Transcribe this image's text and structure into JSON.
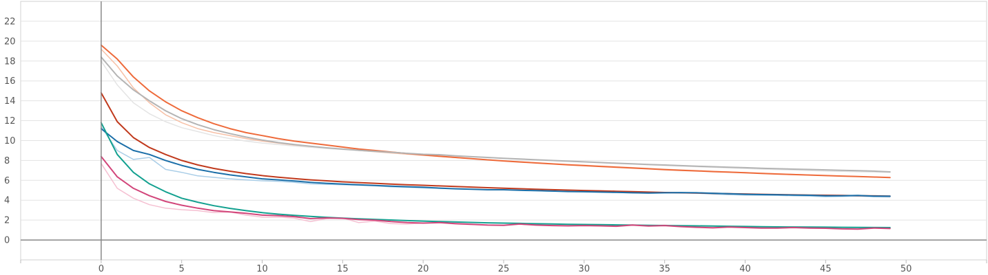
{
  "chart_data": {
    "type": "line",
    "title": "",
    "xlabel": "",
    "ylabel": "",
    "xlim": [
      -5,
      55
    ],
    "ylim": [
      -2,
      24
    ],
    "x_ticks": [
      0,
      5,
      10,
      15,
      20,
      25,
      30,
      35,
      40,
      45,
      50
    ],
    "y_ticks": [
      0,
      2,
      4,
      6,
      8,
      10,
      12,
      14,
      16,
      18,
      20,
      22
    ],
    "grid": "horizontal",
    "legend": "none",
    "x": [
      0,
      1,
      2,
      3,
      4,
      5,
      6,
      7,
      8,
      9,
      10,
      11,
      12,
      13,
      14,
      15,
      16,
      17,
      18,
      19,
      20,
      21,
      22,
      23,
      24,
      25,
      26,
      27,
      28,
      29,
      30,
      31,
      32,
      33,
      34,
      35,
      36,
      37,
      38,
      39,
      40,
      41,
      42,
      43,
      44,
      45,
      46,
      47,
      48,
      49
    ],
    "series": [
      {
        "color": "#ee6a3a",
        "width": 2,
        "values": [
          19.6,
          18.2,
          16.4,
          15.0,
          13.9,
          13.0,
          12.3,
          11.7,
          11.2,
          10.8,
          10.5,
          10.2,
          9.95,
          9.75,
          9.55,
          9.35,
          9.15,
          9.0,
          8.85,
          8.7,
          8.55,
          8.42,
          8.3,
          8.18,
          8.06,
          7.95,
          7.85,
          7.75,
          7.65,
          7.56,
          7.48,
          7.4,
          7.32,
          7.24,
          7.16,
          7.08,
          7.01,
          6.95,
          6.88,
          6.82,
          6.76,
          6.7,
          6.64,
          6.58,
          6.53,
          6.48,
          6.43,
          6.38,
          6.33,
          6.28
        ]
      },
      {
        "color": "#f7c0a6",
        "width": 1.5,
        "values": [
          19.2,
          17.5,
          15.3,
          13.8,
          12.6,
          11.8,
          11.2,
          10.8,
          10.5,
          10.2,
          9.95,
          9.75,
          9.55,
          9.4,
          9.25,
          9.15,
          9.0,
          8.88,
          8.75,
          8.63,
          8.52,
          8.4,
          8.28,
          8.18,
          8.08,
          7.98,
          7.88,
          7.78,
          7.68,
          7.6,
          7.52,
          7.44,
          7.36,
          7.28,
          7.2,
          7.12,
          7.05,
          6.98,
          6.91,
          6.85,
          6.78,
          6.72,
          6.66,
          6.6,
          6.54,
          6.48,
          6.43,
          6.38,
          6.33,
          6.28
        ]
      },
      {
        "color": "#b4b4b4",
        "width": 2,
        "values": [
          18.4,
          16.5,
          15.1,
          14.0,
          13.0,
          12.2,
          11.6,
          11.1,
          10.7,
          10.35,
          10.05,
          9.8,
          9.6,
          9.42,
          9.27,
          9.14,
          9.02,
          8.92,
          8.82,
          8.72,
          8.62,
          8.58,
          8.47,
          8.38,
          8.3,
          8.22,
          8.15,
          8.07,
          8.0,
          7.93,
          7.86,
          7.79,
          7.72,
          7.66,
          7.6,
          7.54,
          7.48,
          7.42,
          7.37,
          7.32,
          7.27,
          7.22,
          7.17,
          7.13,
          7.09,
          7.05,
          7.01,
          6.97,
          6.93,
          6.85
        ]
      },
      {
        "color": "#e4e4e4",
        "width": 1.5,
        "values": [
          18.0,
          15.6,
          13.8,
          12.7,
          11.9,
          11.3,
          10.9,
          10.5,
          10.2,
          9.95,
          9.75,
          9.6,
          9.45,
          9.32,
          9.2,
          9.1,
          9.0,
          8.9,
          8.82,
          8.72,
          8.62,
          8.52,
          8.44,
          8.36,
          8.28,
          8.2,
          8.12,
          8.05,
          7.98,
          7.91,
          7.84,
          7.77,
          7.7,
          7.63,
          7.56,
          7.49,
          7.43,
          7.37,
          7.31,
          7.25,
          7.19,
          7.13,
          7.08,
          7.03,
          6.98,
          6.93,
          6.9,
          6.86,
          6.83,
          6.8
        ]
      },
      {
        "color": "#c0391c",
        "width": 2,
        "values": [
          14.8,
          11.9,
          10.3,
          9.3,
          8.6,
          8.0,
          7.55,
          7.2,
          6.92,
          6.68,
          6.48,
          6.32,
          6.18,
          6.05,
          5.95,
          5.85,
          5.77,
          5.7,
          5.62,
          5.56,
          5.5,
          5.44,
          5.38,
          5.32,
          5.26,
          5.21,
          5.16,
          5.11,
          5.06,
          5.02,
          4.98,
          4.94,
          4.9,
          4.86,
          4.82,
          4.78,
          4.75,
          4.72,
          4.69,
          4.66,
          4.63,
          4.6,
          4.57,
          4.54,
          4.52,
          4.5,
          4.48,
          4.46,
          4.44,
          4.42
        ]
      },
      {
        "color": "#1a6ea8",
        "width": 2,
        "values": [
          11.2,
          9.9,
          9.0,
          8.6,
          8.0,
          7.5,
          7.1,
          6.8,
          6.55,
          6.35,
          6.15,
          6.05,
          5.93,
          5.8,
          5.7,
          5.62,
          5.56,
          5.48,
          5.42,
          5.36,
          5.3,
          5.22,
          5.15,
          5.1,
          5.05,
          5.05,
          5.0,
          4.96,
          4.92,
          4.87,
          4.85,
          4.82,
          4.79,
          4.75,
          4.72,
          4.75,
          4.77,
          4.75,
          4.7,
          4.65,
          4.6,
          4.57,
          4.55,
          4.52,
          4.5,
          4.45,
          4.45,
          4.48,
          4.42,
          4.4
        ]
      },
      {
        "color": "#a9cde7",
        "width": 1.5,
        "values": [
          11.4,
          9.0,
          8.1,
          8.3,
          7.1,
          6.8,
          6.45,
          6.3,
          6.15,
          6.05,
          5.95,
          5.9,
          5.8,
          5.65,
          5.6,
          5.55,
          5.5,
          5.45,
          5.35,
          5.3,
          5.25,
          5.2,
          5.15,
          5.1,
          5.05,
          5.05,
          5.0,
          4.95,
          4.9,
          4.88,
          4.85,
          4.82,
          4.78,
          4.74,
          4.7,
          4.72,
          4.72,
          4.7,
          4.62,
          4.55,
          4.52,
          4.5,
          4.48,
          4.45,
          4.42,
          4.35,
          4.38,
          4.42,
          4.35,
          4.33
        ]
      },
      {
        "color": "#12a08f",
        "width": 2,
        "values": [
          11.8,
          8.6,
          6.8,
          5.65,
          4.85,
          4.2,
          3.8,
          3.45,
          3.18,
          2.95,
          2.75,
          2.6,
          2.48,
          2.38,
          2.28,
          2.2,
          2.13,
          2.07,
          2.01,
          1.95,
          1.9,
          1.85,
          1.81,
          1.77,
          1.73,
          1.7,
          1.67,
          1.64,
          1.61,
          1.58,
          1.56,
          1.54,
          1.52,
          1.5,
          1.48,
          1.46,
          1.44,
          1.42,
          1.4,
          1.38,
          1.36,
          1.34,
          1.32,
          1.31,
          1.3,
          1.29,
          1.28,
          1.27,
          1.26,
          1.25
        ]
      },
      {
        "color": "#d2457a",
        "width": 2,
        "values": [
          8.4,
          6.35,
          5.2,
          4.45,
          3.88,
          3.5,
          3.2,
          2.95,
          2.82,
          2.68,
          2.5,
          2.45,
          2.35,
          2.15,
          2.22,
          2.18,
          2.05,
          2.0,
          1.85,
          1.75,
          1.7,
          1.75,
          1.65,
          1.58,
          1.5,
          1.48,
          1.6,
          1.5,
          1.45,
          1.42,
          1.45,
          1.42,
          1.38,
          1.5,
          1.4,
          1.45,
          1.35,
          1.28,
          1.22,
          1.3,
          1.25,
          1.2,
          1.2,
          1.25,
          1.2,
          1.18,
          1.12,
          1.1,
          1.2,
          1.15
        ]
      },
      {
        "color": "#f5bfd1",
        "width": 1.5,
        "values": [
          7.7,
          5.2,
          4.2,
          3.55,
          3.2,
          3.05,
          2.95,
          2.75,
          2.82,
          2.5,
          2.3,
          2.3,
          2.2,
          1.85,
          2.15,
          2.22,
          1.75,
          1.9,
          1.65,
          1.6,
          1.7,
          1.75,
          1.6,
          1.55,
          1.52,
          1.5,
          1.65,
          1.55,
          1.5,
          1.45,
          1.5,
          1.5,
          1.4,
          1.55,
          1.42,
          1.5,
          1.38,
          1.32,
          1.28,
          1.35,
          1.3,
          1.25,
          1.25,
          1.3,
          1.25,
          1.22,
          1.18,
          1.15,
          1.22,
          1.18
        ]
      }
    ]
  }
}
